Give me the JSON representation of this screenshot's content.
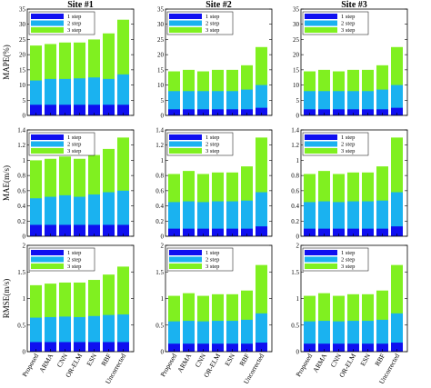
{
  "chart_data": {
    "type": "bar",
    "stacked": true,
    "categories": [
      "Proposed",
      "ARMA",
      "CNN",
      "OR-ELM",
      "ESN",
      "RBF",
      "Uncorrected"
    ],
    "legend": [
      "1 step",
      "2 step",
      "3 step"
    ],
    "legend_placement": "top-left",
    "colors": [
      "#0f0ff0",
      "#1ab2f0",
      "#80f020"
    ],
    "site_titles": [
      "Site #1",
      "Site #2",
      "Site #3"
    ],
    "rows": [
      {
        "ylabel": "MAPE(%)",
        "ylim": [
          0,
          35
        ],
        "yticks": [
          "0",
          "5",
          "10",
          "15",
          "20",
          "25",
          "30",
          "35"
        ],
        "sites": [
          {
            "title": "Site #1",
            "step1": [
              3.5,
              3.5,
              3.5,
              3.5,
              3.5,
              3.5,
              3.5
            ],
            "step2": [
              11.5,
              12,
              12,
              12.2,
              12.5,
              12,
              13.5
            ],
            "step3": [
              23,
              23.5,
              24,
              24,
              25,
              27,
              31.5
            ]
          },
          {
            "title": "Site #2",
            "step1": [
              2,
              2,
              2,
              2,
              2,
              2,
              2.5
            ],
            "step2": [
              8,
              8,
              8,
              8,
              8,
              8.5,
              10
            ],
            "step3": [
              14.5,
              15,
              14.5,
              15,
              15,
              16.5,
              22.5
            ]
          },
          {
            "title": "Site #3",
            "step1": [
              2,
              2,
              2,
              2,
              2,
              2,
              2.5
            ],
            "step2": [
              8,
              8,
              8,
              8,
              8,
              8.5,
              10
            ],
            "step3": [
              14.5,
              15,
              14.5,
              15,
              15,
              16.5,
              22.5
            ]
          }
        ]
      },
      {
        "ylabel": "MAE(m/s)",
        "ylim": [
          0,
          1.4
        ],
        "yticks": [
          "0",
          "0.2",
          "0.4",
          "0.6",
          "0.8",
          "1",
          "1.2",
          "1.4"
        ],
        "sites": [
          {
            "title": "Site #1",
            "step1": [
              0.15,
              0.15,
              0.15,
              0.15,
              0.15,
              0.15,
              0.15
            ],
            "step2": [
              0.5,
              0.52,
              0.54,
              0.52,
              0.55,
              0.58,
              0.6
            ],
            "step3": [
              1.0,
              1.02,
              1.05,
              1.02,
              1.07,
              1.15,
              1.3
            ]
          },
          {
            "title": "Site #2",
            "step1": [
              0.1,
              0.1,
              0.1,
              0.1,
              0.1,
              0.1,
              0.13
            ],
            "step2": [
              0.45,
              0.46,
              0.45,
              0.46,
              0.46,
              0.47,
              0.58
            ],
            "step3": [
              0.82,
              0.86,
              0.82,
              0.84,
              0.84,
              0.92,
              1.3
            ]
          },
          {
            "title": "Site #3",
            "step1": [
              0.1,
              0.1,
              0.1,
              0.1,
              0.1,
              0.1,
              0.13
            ],
            "step2": [
              0.45,
              0.46,
              0.45,
              0.46,
              0.46,
              0.47,
              0.58
            ],
            "step3": [
              0.82,
              0.86,
              0.82,
              0.84,
              0.84,
              0.92,
              1.3
            ]
          }
        ]
      },
      {
        "ylabel": "RMSE(m/s)",
        "ylim": [
          0,
          2
        ],
        "yticks": [
          "0",
          "0.5",
          "1",
          "1.5",
          "2"
        ],
        "sites": [
          {
            "title": "Site #1",
            "step1": [
              0.18,
              0.18,
              0.18,
              0.18,
              0.18,
              0.18,
              0.18
            ],
            "step2": [
              0.64,
              0.65,
              0.66,
              0.65,
              0.67,
              0.69,
              0.7
            ],
            "step3": [
              1.25,
              1.28,
              1.3,
              1.3,
              1.35,
              1.45,
              1.6
            ]
          },
          {
            "title": "Site #2",
            "step1": [
              0.15,
              0.15,
              0.15,
              0.15,
              0.15,
              0.15,
              0.17
            ],
            "step2": [
              0.57,
              0.58,
              0.57,
              0.58,
              0.58,
              0.6,
              0.72
            ],
            "step3": [
              1.05,
              1.1,
              1.05,
              1.08,
              1.08,
              1.15,
              1.63
            ]
          },
          {
            "title": "Site #3",
            "step1": [
              0.15,
              0.15,
              0.15,
              0.15,
              0.15,
              0.15,
              0.17
            ],
            "step2": [
              0.57,
              0.58,
              0.57,
              0.58,
              0.58,
              0.6,
              0.72
            ],
            "step3": [
              1.05,
              1.1,
              1.05,
              1.08,
              1.08,
              1.15,
              1.63
            ]
          }
        ]
      }
    ]
  }
}
